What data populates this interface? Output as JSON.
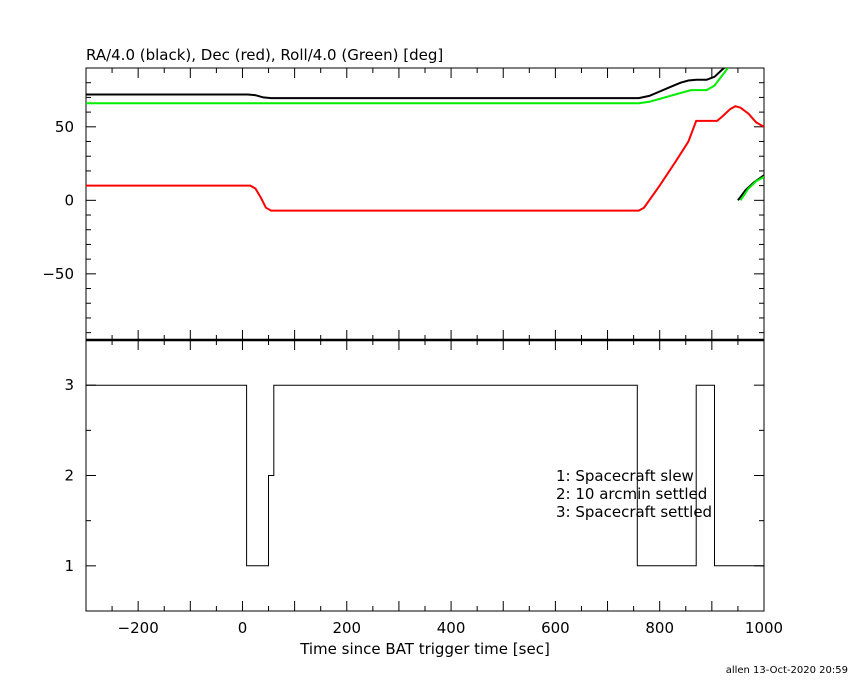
{
  "chart_data": [
    {
      "type": "line",
      "title": "RA/4.0 (black), Dec (red), Roll/4.0 (Green) [deg]",
      "xlim": [
        -300,
        1000
      ],
      "ylim": [
        -95,
        90
      ],
      "y_ticks": [
        -50,
        0,
        50
      ],
      "grid": false,
      "series": [
        {
          "color": "#000000",
          "segments": [
            [
              [
                -300,
                72
              ],
              [
                10,
                72
              ],
              [
                25,
                71.5
              ],
              [
                40,
                70
              ],
              [
                55,
                69.5
              ],
              [
                760,
                69.5
              ],
              [
                780,
                71
              ],
              [
                800,
                74
              ],
              [
                820,
                77
              ],
              [
                840,
                80
              ],
              [
                855,
                81.5
              ],
              [
                870,
                82
              ],
              [
                890,
                82
              ],
              [
                905,
                84
              ],
              [
                920,
                89
              ],
              [
                930,
                92
              ]
            ],
            [
              [
                950,
                0
              ],
              [
                965,
                7
              ],
              [
                980,
                12
              ],
              [
                1000,
                17
              ]
            ]
          ]
        },
        {
          "color": "#00ee00",
          "segments": [
            [
              [
                -300,
                66
              ],
              [
                760,
                66
              ],
              [
                780,
                67
              ],
              [
                800,
                69
              ],
              [
                820,
                71
              ],
              [
                840,
                73
              ],
              [
                860,
                75
              ],
              [
                890,
                75
              ],
              [
                905,
                78
              ],
              [
                920,
                85
              ],
              [
                935,
                92
              ]
            ],
            [
              [
                955,
                0
              ],
              [
                970,
                8
              ],
              [
                985,
                13
              ],
              [
                1000,
                16
              ]
            ]
          ]
        },
        {
          "color": "#ff0000",
          "segments": [
            [
              [
                -300,
                10
              ],
              [
                15,
                10
              ],
              [
                25,
                8
              ],
              [
                35,
                2
              ],
              [
                45,
                -5
              ],
              [
                55,
                -7
              ],
              [
                760,
                -7
              ],
              [
                770,
                -5
              ],
              [
                800,
                10
              ],
              [
                830,
                26
              ],
              [
                855,
                40
              ],
              [
                870,
                54
              ],
              [
                910,
                54
              ],
              [
                920,
                57
              ],
              [
                935,
                62
              ],
              [
                945,
                64
              ],
              [
                955,
                63
              ],
              [
                970,
                59
              ],
              [
                985,
                53
              ],
              [
                1000,
                50
              ]
            ]
          ]
        }
      ]
    },
    {
      "type": "line",
      "xlabel": "Time since BAT trigger time [sec]",
      "xlim": [
        -300,
        1000
      ],
      "ylim": [
        0.5,
        3.5
      ],
      "x_ticks": [
        -200,
        0,
        200,
        400,
        600,
        800,
        1000
      ],
      "y_ticks": [
        1,
        2,
        3
      ],
      "grid": false,
      "step": [
        [
          -300,
          3
        ],
        [
          8,
          3
        ],
        [
          8,
          1
        ],
        [
          50,
          1
        ],
        [
          50,
          2
        ],
        [
          60,
          2
        ],
        [
          60,
          3
        ],
        [
          757,
          3
        ],
        [
          757,
          1
        ],
        [
          870,
          1
        ],
        [
          870,
          3
        ],
        [
          905,
          3
        ],
        [
          905,
          1
        ],
        [
          1000,
          1
        ]
      ],
      "legend": [
        "1: Spacecraft slew",
        "2: 10 arcmin settled",
        "3: Spacecraft settled"
      ]
    }
  ],
  "footer": "allen 13-Oct-2020 20:59"
}
